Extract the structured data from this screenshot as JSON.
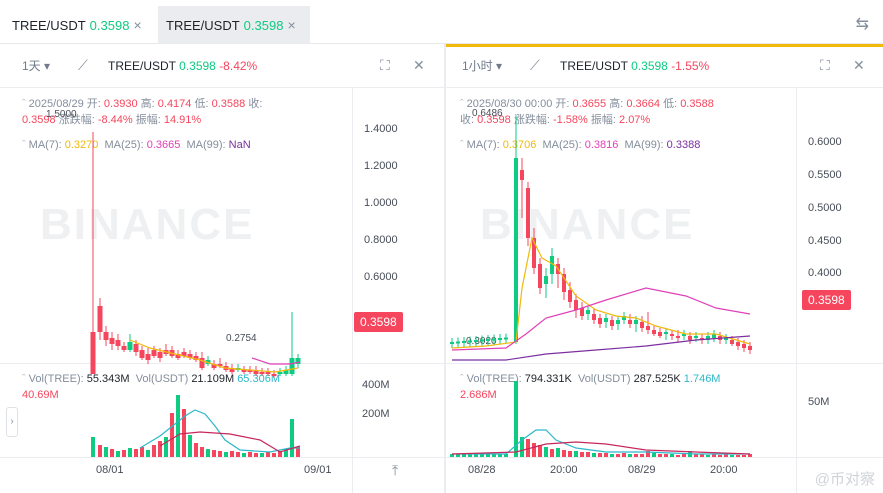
{
  "tabs": [
    {
      "symbol": "TREE/USDT",
      "price": "0.3598"
    },
    {
      "symbol": "TREE/USDT",
      "price": "0.3598"
    }
  ],
  "left": {
    "interval": "1天",
    "symbol": "TREE/USDT",
    "price": "0.3598",
    "change": "-8.42%",
    "info": {
      "date": "2025/08/29",
      "open_l": "开:",
      "open": "0.3930",
      "high_l": "高:",
      "high": "0.4174",
      "low_l": "低:",
      "low": "0.3588",
      "close_l": "收:",
      "close": "0.3598",
      "chg_l": "涨跌幅:",
      "chg": "-8.44%",
      "amp_l": "振幅:",
      "amp": "14.91%"
    },
    "ma": {
      "ma7_l": "MA(7):",
      "ma7": "0.3270",
      "ma25_l": "MA(25):",
      "ma25": "0.3665",
      "ma99_l": "MA(99):",
      "ma99": "NaN"
    },
    "yticks": [
      "1.4000",
      "1.2000",
      "1.0000",
      "0.8000",
      "0.6000"
    ],
    "hi_label": "1.5000",
    "lo_label": "0.2754",
    "price_tag": "0.3598",
    "vol": {
      "tree_l": "Vol(TREE):",
      "tree": "55.343M",
      "usdt_l": "Vol(USDT)",
      "usdt": "21.109M",
      "teal": "65.306M",
      "red": "40.69M"
    },
    "vticks": [
      "400M",
      "200M"
    ],
    "xticks": [
      "08/01",
      "09/01"
    ]
  },
  "right": {
    "interval": "1小时",
    "symbol": "TREE/USDT",
    "price": "0.3598",
    "change": "-1.55%",
    "info": {
      "date": "2025/08/30 00:00",
      "open_l": "开:",
      "open": "0.3655",
      "high_l": "高:",
      "high": "0.3664",
      "low_l": "低:",
      "low": "0.3588",
      "close_l": "收:",
      "close": "0.3598",
      "chg_l": "涨跌幅:",
      "chg": "-1.58%",
      "amp_l": "振幅:",
      "amp": "2.07%"
    },
    "ma": {
      "ma7_l": "MA(7):",
      "ma7": "0.3706",
      "ma25_l": "MA(25):",
      "ma25": "0.3816",
      "ma99_l": "MA(99):",
      "ma99": "0.3388"
    },
    "yticks": [
      "0.6000",
      "0.5500",
      "0.5000",
      "0.4500",
      "0.4000"
    ],
    "hi_label": "0.6486",
    "lo_label": "0.3020",
    "price_tag": "0.3598",
    "vol": {
      "tree_l": "Vol(TREE):",
      "tree": "794.331K",
      "usdt_l": "Vol(USDT)",
      "usdt": "287.525K",
      "teal": "1.746M",
      "red": "2.686M"
    },
    "vticks": [
      "50M"
    ],
    "xticks": [
      "08/28",
      "20:00",
      "08/29",
      "20:00"
    ]
  },
  "watermark": "BINANCE",
  "corner_text": "@币对察",
  "colors": {
    "up": "#0ecb81",
    "down": "#f6465d",
    "ma7": "#f0b90b",
    "ma25": "#e040b8",
    "ma99": "#7b2fa0",
    "accent": "#f0b90b"
  }
}
